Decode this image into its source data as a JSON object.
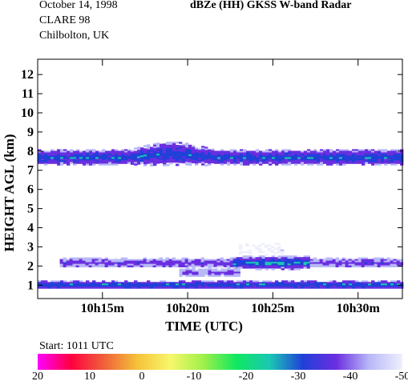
{
  "header": {
    "date": "October 14, 1998",
    "campaign": "CLARE 98",
    "site": "Chilbolton, UK",
    "title": "dBZe (HH)   GKSS  W-band Radar"
  },
  "footer": {
    "start": "Start: 1011 UTC"
  },
  "chart_data": {
    "type": "heatmap",
    "title": "dBZe (HH)   GKSS  W-band Radar",
    "xlabel": "TIME (UTC)",
    "ylabel": "HEIGHT AGL (km)",
    "x_ticks": [
      "10h15m",
      "10h20m",
      "10h25m",
      "10h30m"
    ],
    "x_tick_minutes": [
      15,
      20,
      25,
      30
    ],
    "xlim_minutes": [
      11.2,
      32.6
    ],
    "y_ticks": [
      "1",
      "2",
      "3",
      "4",
      "5",
      "6",
      "7",
      "8",
      "9",
      "10",
      "11",
      "12"
    ],
    "ylim": [
      0.3,
      12.8
    ],
    "colorbar": {
      "labels": [
        "20",
        "10",
        "0",
        "-10",
        "-20",
        "-30",
        "-40",
        "-50"
      ],
      "range": [
        20,
        -50
      ],
      "colors": [
        "#ff00ff",
        "#ff0040",
        "#f0603a",
        "#f5c23a",
        "#f7f76a",
        "#9ef04a",
        "#10e860",
        "#1ac8b4",
        "#2040d8",
        "#6a2ee0",
        "#b8b8f8",
        "#eef0fc"
      ]
    },
    "layers": [
      {
        "name": "upper cloud",
        "t_start": 11.2,
        "t_end": 32.6,
        "base_km": 7.3,
        "top_km": 8.1,
        "dbz_core": -28,
        "dbz_edge": -40,
        "patch": {
          "t_start": 16.5,
          "t_end": 21.5,
          "top_km": 8.5
        }
      },
      {
        "name": "mid cloud",
        "t_start": 12.5,
        "t_end": 32.6,
        "base_km": 1.95,
        "top_km": 2.45,
        "dbz_core": -35,
        "dbz_edge": -42,
        "core": {
          "t_start": 22.5,
          "t_end": 27.0,
          "base_km": 1.85,
          "top_km": 2.55,
          "dbz": -25
        }
      },
      {
        "name": "lower cloud",
        "t_start": 11.2,
        "t_end": 32.6,
        "base_km": 0.85,
        "top_km": 1.25,
        "dbz_core": -27,
        "dbz_edge": -38
      },
      {
        "name": "fallstreak",
        "t_start": 19.5,
        "t_end": 23.0,
        "base_km": 1.45,
        "top_km": 1.95,
        "dbz_core": -36,
        "dbz_edge": -45
      },
      {
        "name": "sparse echoes",
        "t_start": 23.0,
        "t_end": 25.5,
        "base_km": 2.55,
        "top_km": 3.2,
        "dbz_core": -46,
        "dbz_edge": -50
      }
    ]
  }
}
